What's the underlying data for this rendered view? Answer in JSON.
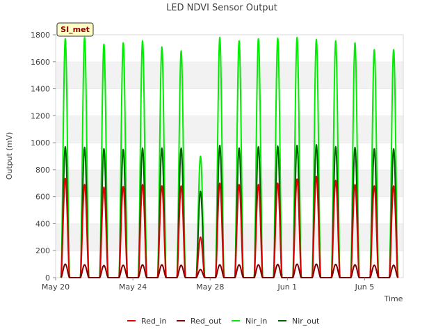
{
  "chart_data": {
    "type": "line",
    "title": "LED NDVI Sensor Output",
    "xlabel": "Time",
    "ylabel": "Output (mV)",
    "site_badge": "SI_met",
    "ylim": [
      0,
      1800
    ],
    "yticks": [
      0,
      200,
      400,
      600,
      800,
      1000,
      1200,
      1400,
      1600,
      1800
    ],
    "xlim": [
      "2019-05-20",
      "2019-06-07"
    ],
    "xticks": [
      {
        "date": "2019-05-20",
        "label": "May 20"
      },
      {
        "date": "2019-05-24",
        "label": "May 24"
      },
      {
        "date": "2019-05-28",
        "label": "May 28"
      },
      {
        "date": "2019-06-01",
        "label": "Jun 1"
      },
      {
        "date": "2019-06-05",
        "label": "Jun 5"
      }
    ],
    "grid": "horizontal bands",
    "legend_position": "bottom",
    "x": [
      "2019-05-20",
      "2019-05-21",
      "2019-05-22",
      "2019-05-23",
      "2019-05-24",
      "2019-05-25",
      "2019-05-26",
      "2019-05-27",
      "2019-05-28",
      "2019-05-29",
      "2019-05-30",
      "2019-05-31",
      "2019-06-01",
      "2019-06-02",
      "2019-06-03",
      "2019-06-04",
      "2019-06-05",
      "2019-06-06"
    ],
    "x_note_units": "daily peak values at local solar noon; output is near 0 at night",
    "series": [
      {
        "name": "Red_in",
        "color": "#e00000",
        "values": [
          735,
          690,
          670,
          675,
          690,
          680,
          680,
          300,
          700,
          690,
          690,
          700,
          730,
          750,
          720,
          690,
          680,
          680
        ]
      },
      {
        "name": "Red_out",
        "color": "#7a0000",
        "values": [
          100,
          95,
          90,
          92,
          95,
          95,
          92,
          60,
          95,
          95,
          95,
          98,
          100,
          100,
          98,
          95,
          92,
          92
        ]
      },
      {
        "name": "Nir_in",
        "color": "#00ee00",
        "values": [
          1770,
          1780,
          1730,
          1740,
          1755,
          1710,
          1680,
          900,
          1780,
          1755,
          1770,
          1775,
          1780,
          1765,
          1755,
          1740,
          1690,
          1690
        ]
      },
      {
        "name": "Nir_out",
        "color": "#005f00",
        "values": [
          970,
          965,
          955,
          950,
          960,
          960,
          960,
          640,
          980,
          960,
          970,
          975,
          980,
          985,
          970,
          965,
          955,
          955
        ]
      }
    ]
  }
}
